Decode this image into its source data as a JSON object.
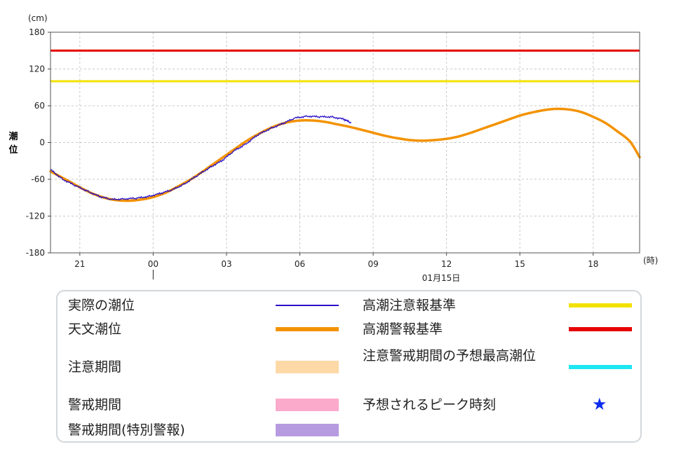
{
  "chart_data": {
    "type": "line",
    "ylabel": "潮位",
    "yunit": "(cm)",
    "xunit": "(時)",
    "date_label": "01月15日",
    "ylim": [
      -180,
      180
    ],
    "yticks": [
      180,
      120,
      60,
      0,
      -60,
      -120,
      -180
    ],
    "xticks": [
      "21",
      "00",
      "03",
      "06",
      "09",
      "12",
      "15",
      "18"
    ],
    "xtick_hours": [
      21,
      24,
      27,
      30,
      33,
      36,
      39,
      42
    ],
    "xlim_hours": [
      19.8,
      43.9
    ],
    "grid": true,
    "series": [
      {
        "name": "実際の潮位",
        "color": "#2a10c8",
        "x": [
          19.8,
          20.3,
          20.8,
          21.3,
          21.8,
          22.3,
          22.8,
          23.3,
          23.8,
          24.3,
          24.8,
          25.3,
          25.8,
          26.3,
          26.8,
          27.3,
          27.8,
          28.3,
          28.8,
          29.3,
          29.8,
          30.3,
          30.8,
          31.3,
          31.8,
          32.1
        ],
        "y": [
          -44,
          -60,
          -70,
          -79,
          -88,
          -93,
          -92,
          -91,
          -88,
          -83,
          -77,
          -67,
          -54,
          -41,
          -30,
          -14,
          -2,
          13,
          23,
          31,
          40,
          43,
          42,
          42,
          38,
          32
        ]
      },
      {
        "name": "天文潮位",
        "color": "#f39200",
        "x": [
          19.8,
          20.5,
          21.0,
          21.5,
          22.0,
          22.5,
          23.0,
          23.5,
          24.0,
          24.5,
          25.0,
          25.5,
          26.0,
          26.5,
          27.0,
          27.5,
          28.0,
          28.5,
          29.0,
          29.5,
          30.0,
          30.5,
          31.0,
          31.5,
          32.0,
          32.5,
          33.0,
          33.5,
          34.0,
          34.5,
          35.0,
          35.5,
          36.0,
          36.5,
          37.0,
          37.5,
          38.0,
          38.5,
          39.0,
          39.5,
          40.0,
          40.5,
          41.0,
          41.5,
          42.0,
          42.5,
          43.0,
          43.5,
          43.9
        ],
        "y": [
          -47,
          -62,
          -73,
          -83,
          -90,
          -94,
          -95,
          -93,
          -89,
          -82,
          -72,
          -61,
          -48,
          -34,
          -20,
          -6,
          7,
          18,
          27,
          33,
          36,
          36,
          34,
          30,
          26,
          21,
          16,
          11,
          7,
          4,
          3,
          4,
          6,
          10,
          16,
          23,
          30,
          37,
          44,
          49,
          53,
          55,
          54,
          50,
          42,
          32,
          18,
          2,
          -24
        ]
      }
    ],
    "thresholds": [
      {
        "name": "高潮警報基準",
        "value": 150,
        "color": "#e60000"
      },
      {
        "name": "高潮注意報基準",
        "value": 100,
        "color": "#f2e100"
      }
    ]
  },
  "legend": {
    "left": [
      {
        "label": "実際の潮位",
        "kind": "line",
        "color": "#2a10c8"
      },
      {
        "label": "天文潮位",
        "kind": "thick",
        "color": "#f39200"
      },
      {
        "label": "注意期間",
        "kind": "band",
        "color": "#fdd9a8"
      },
      {
        "label": "警戒期間",
        "kind": "band",
        "color": "#fcaacb"
      },
      {
        "label": "警戒期間(特別警報)",
        "kind": "band",
        "color": "#b79be0"
      }
    ],
    "right": [
      {
        "label": "高潮注意報基準",
        "kind": "thick",
        "color": "#f2e100"
      },
      {
        "label": "高潮警報基準",
        "kind": "thick",
        "color": "#e60000"
      },
      {
        "label": "注意警戒期間の予想最高潮位",
        "kind": "thick",
        "color": "#1ee6f2"
      },
      {
        "label": "予想されるピーク時刻",
        "kind": "star",
        "color": "#0a2cf0",
        "symbol": "★"
      }
    ]
  }
}
